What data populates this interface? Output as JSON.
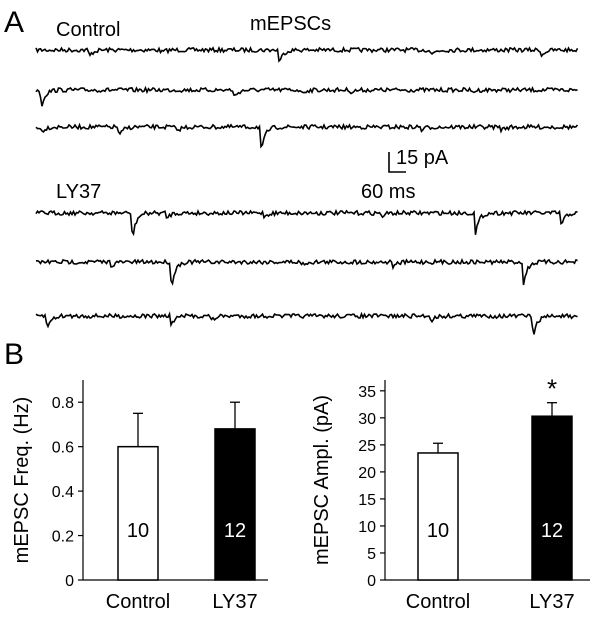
{
  "panel_a": {
    "letter": "A",
    "title": "mEPSCs",
    "control_label": "Control",
    "drug_label": "LY37",
    "scalebar_y": "15 pA",
    "scalebar_x": "60 ms"
  },
  "panel_b": {
    "letter": "B"
  },
  "chart_data": [
    {
      "type": "bar",
      "ylabel": "mEPSC Freq. (Hz)",
      "categories": [
        "Control",
        "LY37"
      ],
      "values": [
        0.6,
        0.68
      ],
      "errors": [
        0.15,
        0.12
      ],
      "n_labels": [
        "10",
        "12"
      ],
      "bar_colors": [
        "#ffffff",
        "#000000"
      ],
      "ylim": [
        0,
        0.9
      ],
      "yticks": [
        "0",
        "0.2",
        "0.4",
        "0.6",
        "0.8"
      ],
      "ytick_values": [
        0,
        0.2,
        0.4,
        0.6,
        0.8
      ],
      "significance": [
        "",
        ""
      ]
    },
    {
      "type": "bar",
      "ylabel": "mEPSC Ampl. (pA)",
      "categories": [
        "Control",
        "LY37"
      ],
      "values": [
        23.5,
        30.3
      ],
      "errors": [
        1.8,
        2.5
      ],
      "n_labels": [
        "10",
        "12"
      ],
      "bar_colors": [
        "#ffffff",
        "#000000"
      ],
      "ylim": [
        0,
        37
      ],
      "yticks": [
        "0",
        "5",
        "10",
        "15",
        "20",
        "25",
        "30",
        "35"
      ],
      "ytick_values": [
        0,
        5,
        10,
        15,
        20,
        25,
        30,
        35
      ],
      "significance": [
        "",
        "*"
      ]
    }
  ]
}
